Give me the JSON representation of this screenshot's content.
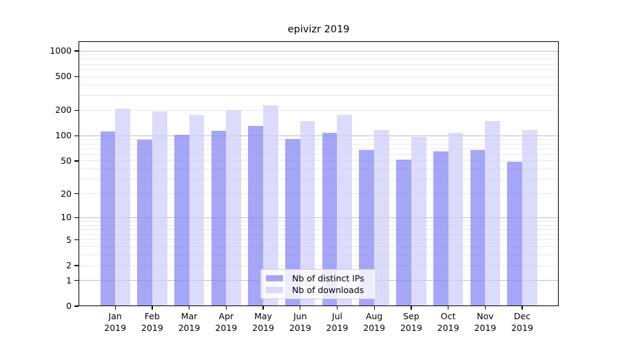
{
  "chart_data": {
    "type": "bar",
    "title": "epivizr 2019",
    "x": {
      "months": [
        "Jan",
        "Feb",
        "Mar",
        "Apr",
        "May",
        "Jun",
        "Jul",
        "Aug",
        "Sep",
        "Oct",
        "Nov",
        "Dec"
      ],
      "year": "2019"
    },
    "series": [
      {
        "name": "Nb of distinct IPs",
        "values": [
          112,
          89,
          102,
          114,
          131,
          91,
          108,
          68,
          52,
          65,
          67,
          49
        ]
      },
      {
        "name": "Nb of downloads",
        "values": [
          210,
          195,
          177,
          202,
          228,
          148,
          176,
          116,
          96,
          109,
          150,
          117
        ]
      }
    ],
    "y_axis": {
      "scale": "log1p",
      "tick_values": [
        0,
        1,
        2,
        5,
        10,
        20,
        50,
        100,
        200,
        500,
        1000
      ],
      "range": [
        0,
        1000
      ],
      "major_grid_values": [
        1,
        10,
        100,
        1000
      ],
      "minor_grid_decades": [
        1,
        10,
        100
      ]
    },
    "legend": {
      "position": "bottom-center"
    }
  },
  "colors": {
    "bar_ips_fill": "rgba(132,132,243,0.72)",
    "bar_downloads_fill": "rgba(205,205,250,0.72)",
    "swatch_ips": "#a5a5f6",
    "swatch_downloads": "#d9d9fa",
    "grid_major": "#bdbdbd",
    "grid_minor": "#e9e9e9",
    "spine": "#000000"
  }
}
